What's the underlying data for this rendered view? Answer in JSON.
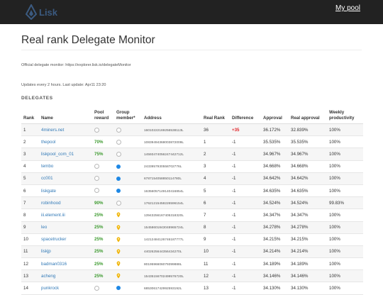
{
  "brand": {
    "name": "Lisk"
  },
  "nav": {
    "pool_link": "My pool"
  },
  "page": {
    "title": "Real rank Delegate Monitor",
    "official_monitor": "Official delegate monitor: https://explorer.lisk.io/delegateMonitor",
    "updates": "Updates every 2 hours. Last update: Apr11 23:20",
    "section_title": "DELEGATES"
  },
  "colors": {
    "navbar": "#222222",
    "link": "#337ab7",
    "pool_pct": "#3c9a2e",
    "positive_diff": "#e0262b",
    "member_dot": "#1e88e5",
    "pending_pin": "#f0b400"
  },
  "table": {
    "headers": {
      "rank": "Rank",
      "name": "Name",
      "pool_reward": "Pool reward",
      "group_member": "Group member*",
      "address": "Address",
      "real_rank": "Real Rank",
      "difference": "Difference",
      "approval": "Approval",
      "real_approval": "Real approval",
      "weekly": "Weekly productivity"
    },
    "rows": [
      {
        "rank": "1",
        "name": "4miners.net",
        "pool_reward": "",
        "member": "no",
        "address": "16010222169256538113L",
        "real_rank": "36",
        "difference": "+35",
        "approval": "36.172%",
        "real_approval": "32.839%",
        "weekly": "100%"
      },
      {
        "rank": "2",
        "name": "thepool",
        "pool_reward": "70%",
        "member": "no",
        "address": "10839494368003872009L",
        "real_rank": "1",
        "difference": "-1",
        "approval": "35.535%",
        "real_approval": "35.535%",
        "weekly": "100%"
      },
      {
        "rank": "3",
        "name": "liskpool_com_01",
        "pool_reward": "75%",
        "member": "no",
        "address": "14593474056247442712L",
        "real_rank": "2",
        "difference": "-1",
        "approval": "34.967%",
        "real_approval": "34.967%",
        "weekly": "100%"
      },
      {
        "rank": "4",
        "name": "tembo",
        "pool_reward": "",
        "member": "yes",
        "address": "2433957930558702776L",
        "real_rank": "3",
        "difference": "-1",
        "approval": "34.668%",
        "real_approval": "34.668%",
        "weekly": "100%"
      },
      {
        "rank": "5",
        "name": "cc001",
        "pool_reward": "",
        "member": "yes",
        "address": "6787154058850114780L",
        "real_rank": "4",
        "difference": "-1",
        "approval": "34.642%",
        "real_approval": "34.642%",
        "weekly": "100%"
      },
      {
        "rank": "6",
        "name": "liskgate",
        "pool_reward": "",
        "member": "yes",
        "address": "16356057149140416854L",
        "real_rank": "5",
        "difference": "-1",
        "approval": "34.635%",
        "real_approval": "34.635%",
        "weekly": "100%"
      },
      {
        "rank": "7",
        "name": "robinhood",
        "pool_reward": "90%",
        "member": "no",
        "address": "17621215458226596154L",
        "real_rank": "6",
        "difference": "-1",
        "approval": "34.524%",
        "real_approval": "34.524%",
        "weekly": "99.83%"
      },
      {
        "rank": "8",
        "name": "iii.element.iii",
        "pool_reward": "25%",
        "member": "pending",
        "address": "13943256167405318320L",
        "real_rank": "7",
        "difference": "-1",
        "approval": "34.347%",
        "real_approval": "34.347%",
        "weekly": "100%"
      },
      {
        "rank": "9",
        "name": "leo",
        "pool_reward": "25%",
        "member": "pending",
        "address": "15458601843048965724L",
        "real_rank": "8",
        "difference": "-1",
        "approval": "34.278%",
        "real_approval": "34.278%",
        "weekly": "100%"
      },
      {
        "rank": "10",
        "name": "spacetrucker",
        "pool_reward": "25%",
        "member": "pending",
        "address": "14212484126746187777L",
        "real_rank": "9",
        "difference": "-1",
        "approval": "34.215%",
        "real_approval": "34.215%",
        "weekly": "100%"
      },
      {
        "rank": "11",
        "name": "liskjp",
        "pool_reward": "25%",
        "member": "pending",
        "address": "4402625644356434270L",
        "real_rank": "10",
        "difference": "-1",
        "approval": "34.214%",
        "real_approval": "34.214%",
        "weekly": "100%"
      },
      {
        "rank": "12",
        "name": "badman0316",
        "pool_reward": "25%",
        "member": "pending",
        "address": "8019596606079399888L",
        "real_rank": "11",
        "difference": "-1",
        "approval": "34.189%",
        "real_approval": "34.189%",
        "weekly": "100%"
      },
      {
        "rank": "13",
        "name": "acheng",
        "pool_reward": "25%",
        "member": "pending",
        "address": "15435156702499576720L",
        "real_rank": "12",
        "difference": "-1",
        "approval": "34.146%",
        "real_approval": "34.146%",
        "weekly": "100%"
      },
      {
        "rank": "14",
        "name": "punkrock",
        "pool_reward": "",
        "member": "yes",
        "address": "6853061742992593192L",
        "real_rank": "13",
        "difference": "-1",
        "approval": "34.130%",
        "real_approval": "34.130%",
        "weekly": "100%"
      }
    ]
  }
}
